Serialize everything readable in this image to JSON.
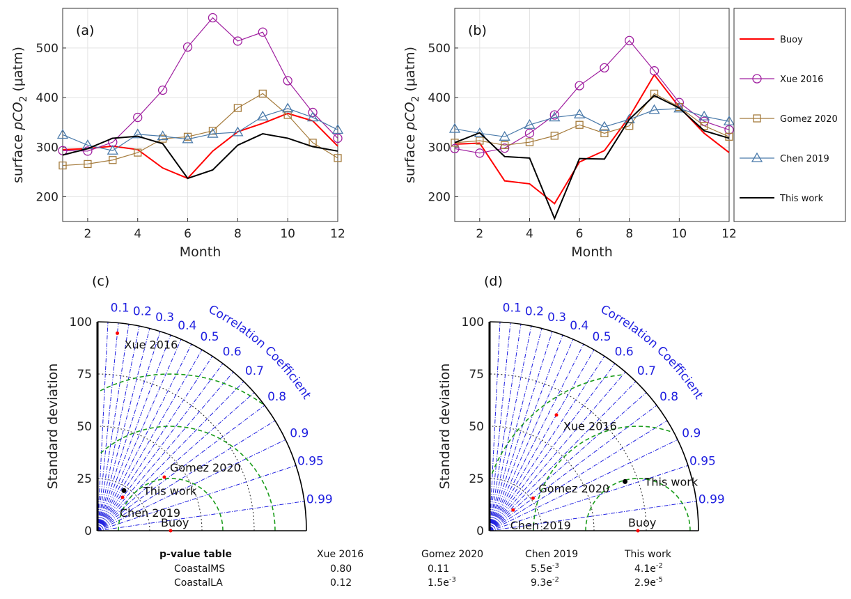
{
  "chart_data": [
    {
      "panel": "(a)",
      "type": "line",
      "xlabel": "Month",
      "ylabel_prefix": "surface ",
      "ylabel_p": "p",
      "ylabel_co": "CO",
      "ylabel_sub": "2",
      "ylabel_unit": " (μatm)",
      "xlim": [
        1,
        12
      ],
      "ylim": [
        150,
        580
      ],
      "xticks": [
        "2",
        "4",
        "6",
        "8",
        "10",
        "12"
      ],
      "yticks": [
        "200",
        "300",
        "400",
        "500"
      ],
      "x": [
        1,
        2,
        3,
        4,
        5,
        6,
        7,
        8,
        9,
        10,
        11,
        12
      ],
      "series": [
        {
          "name": "Buoy",
          "color": "#ff0000",
          "marker": "none",
          "values": [
            295,
            297,
            302,
            295,
            258,
            237,
            292,
            331,
            348,
            368,
            353,
            302
          ]
        },
        {
          "name": "Xue 2016",
          "color": "#a020a0",
          "marker": "circle",
          "values": [
            293,
            292,
            310,
            360,
            415,
            502,
            561,
            514,
            532,
            434,
            370,
            318
          ]
        },
        {
          "name": "Gomez 2020",
          "color": "#a57b3c",
          "marker": "square",
          "values": [
            263,
            266,
            274,
            289,
            317,
            321,
            333,
            379,
            408,
            365,
            309,
            278
          ]
        },
        {
          "name": "Chen 2019",
          "color": "#4a7aaa",
          "marker": "triangle",
          "values": [
            325,
            304,
            293,
            326,
            322,
            316,
            327,
            330,
            362,
            378,
            360,
            335
          ]
        },
        {
          "name": "This work",
          "color": "#000000",
          "marker": "none",
          "values": [
            284,
            297,
            318,
            322,
            307,
            237,
            254,
            304,
            327,
            318,
            301,
            292
          ]
        }
      ]
    },
    {
      "panel": "(b)",
      "type": "line",
      "xlabel": "Month",
      "ylabel_prefix": "surface ",
      "ylabel_p": "p",
      "ylabel_co": "CO",
      "ylabel_sub": "2",
      "ylabel_unit": " (μatm)",
      "xlim": [
        1,
        12
      ],
      "ylim": [
        150,
        580
      ],
      "xticks": [
        "2",
        "4",
        "6",
        "8",
        "10",
        "12"
      ],
      "yticks": [
        "200",
        "300",
        "400",
        "500"
      ],
      "x": [
        1,
        2,
        3,
        4,
        5,
        6,
        7,
        8,
        9,
        10,
        11,
        12
      ],
      "series": [
        {
          "name": "Buoy",
          "color": "#ff0000",
          "marker": "none",
          "values": [
            306,
            308,
            232,
            226,
            186,
            270,
            293,
            361,
            446,
            381,
            328,
            289
          ]
        },
        {
          "name": "Xue 2016",
          "color": "#a020a0",
          "marker": "circle",
          "values": [
            297,
            288,
            298,
            328,
            365,
            424,
            460,
            515,
            454,
            390,
            352,
            335
          ]
        },
        {
          "name": "Gomez 2020",
          "color": "#a57b3c",
          "marker": "square",
          "values": [
            309,
            313,
            304,
            310,
            323,
            345,
            328,
            343,
            408,
            381,
            343,
            321
          ]
        },
        {
          "name": "Chen 2019",
          "color": "#4a7aaa",
          "marker": "triangle",
          "values": [
            337,
            328,
            321,
            345,
            360,
            366,
            341,
            356,
            375,
            378,
            362,
            352
          ]
        },
        {
          "name": "This work",
          "color": "#000000",
          "marker": "none",
          "values": [
            309,
            329,
            281,
            278,
            156,
            277,
            276,
            356,
            404,
            379,
            333,
            318
          ]
        }
      ]
    },
    {
      "panel": "(c)",
      "type": "taylor",
      "ylabel": "Standard deviation",
      "corr_title": "Correlation Coefficient",
      "std_max": 100,
      "std_ticks": [
        "0",
        "25",
        "50",
        "75",
        "100"
      ],
      "corr_ticks": [
        "0.1",
        "0.2",
        "0.3",
        "0.4",
        "0.5",
        "0.6",
        "0.7",
        "0.8",
        "0.9",
        "0.95",
        "0.99"
      ],
      "ref_std": 35,
      "points": [
        {
          "name": "Xue 2016",
          "std": 95,
          "corr": 0.1,
          "color": "#ff0000"
        },
        {
          "name": "Gomez 2020",
          "std": 41,
          "corr": 0.78,
          "color": "#ff0000"
        },
        {
          "name": "This work",
          "std": 23,
          "corr": 0.55,
          "color": "#000000"
        },
        {
          "name": "Chen 2019",
          "std": 20,
          "corr": 0.6,
          "color": "#ff0000"
        },
        {
          "name": "Buoy",
          "std": 35,
          "corr": 1.0,
          "color": "#ff0000"
        }
      ]
    },
    {
      "panel": "(d)",
      "type": "taylor",
      "ylabel": "Standard deviation",
      "corr_title": "Correlation Coefficient",
      "std_max": 100,
      "std_ticks": [
        "0",
        "25",
        "50",
        "75",
        "100"
      ],
      "corr_ticks": [
        "0.1",
        "0.2",
        "0.3",
        "0.4",
        "0.5",
        "0.6",
        "0.7",
        "0.8",
        "0.9",
        "0.95",
        "0.99"
      ],
      "ref_std": 71,
      "points": [
        {
          "name": "Xue 2016",
          "std": 64,
          "corr": 0.5,
          "color": "#ff0000"
        },
        {
          "name": "This work",
          "std": 69,
          "corr": 0.94,
          "color": "#000000"
        },
        {
          "name": "Gomez 2020",
          "std": 26,
          "corr": 0.8,
          "color": "#ff0000"
        },
        {
          "name": "Chen 2019",
          "std": 15,
          "corr": 0.75,
          "color": "#ff0000"
        },
        {
          "name": "Buoy",
          "std": 71,
          "corr": 1.0,
          "color": "#ff0000"
        }
      ]
    }
  ],
  "legend": [
    "Buoy",
    "Xue 2016",
    "Gomez 2020",
    "Chen 2019",
    "This work"
  ],
  "pvalue_table": {
    "title": "p-value table",
    "columns": [
      "Xue 2016",
      "Gomez 2020",
      "Chen 2019",
      "This work"
    ],
    "rows": [
      {
        "label": "CoastalMS",
        "cells": [
          {
            "base": "0.80",
            "exp": ""
          },
          {
            "base": "0.11",
            "exp": ""
          },
          {
            "base": "5.5e",
            "exp": "-3"
          },
          {
            "base": "4.1e",
            "exp": "-2"
          }
        ]
      },
      {
        "label": "CoastalLA",
        "cells": [
          {
            "base": "0.12",
            "exp": ""
          },
          {
            "base": "1.5e",
            "exp": "-3"
          },
          {
            "base": "9.3e",
            "exp": "-2"
          },
          {
            "base": "2.9e",
            "exp": "-5"
          }
        ]
      }
    ]
  }
}
